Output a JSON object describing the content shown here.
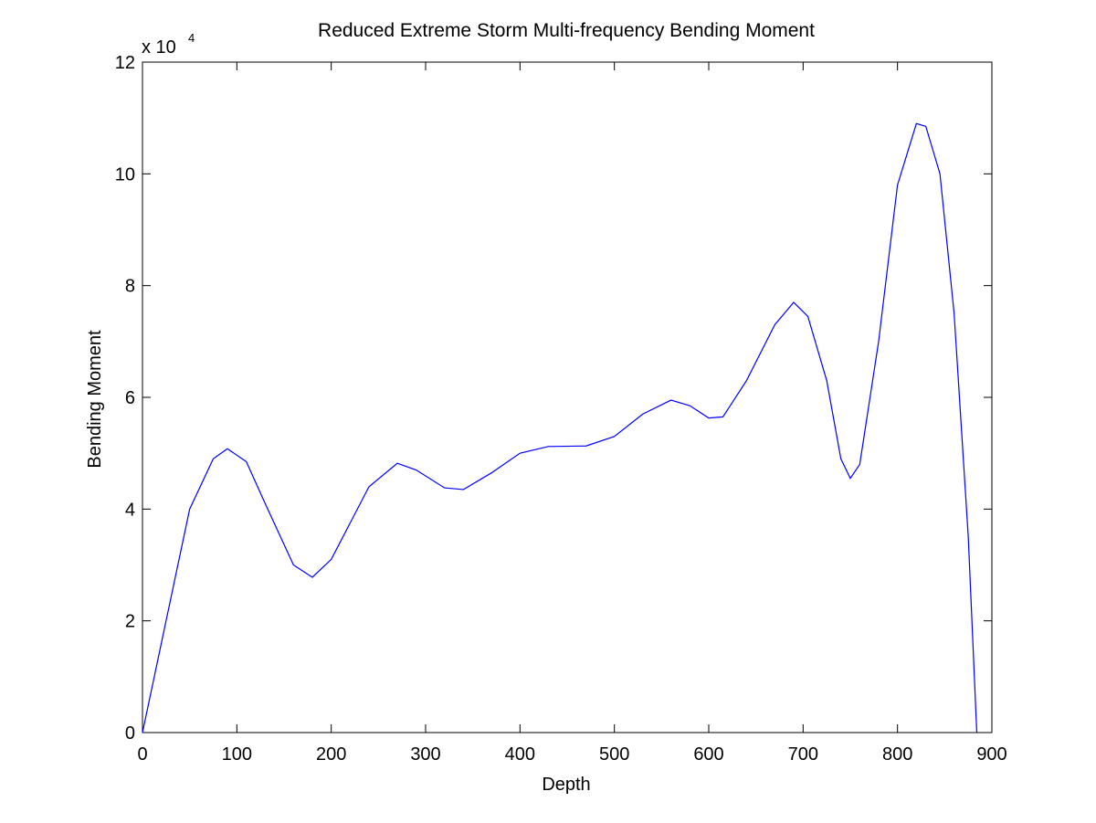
{
  "chart_data": {
    "type": "line",
    "title": "Reduced Extreme Storm Multi-frequency Bending Moment",
    "x_label": "Depth",
    "y_label": "Bending Moment",
    "y_multiplier": {
      "base": "x 10",
      "exponent": "4"
    },
    "xlim": [
      0,
      900
    ],
    "xticks": [
      0,
      100,
      200,
      300,
      400,
      500,
      600,
      700,
      800,
      900
    ],
    "ylim": [
      0,
      12
    ],
    "yticks": [
      0,
      2,
      4,
      6,
      8,
      10,
      12
    ],
    "series": [
      {
        "color": "#0000ff",
        "x": [
          0,
          10,
          25,
          50,
          75,
          90,
          110,
          130,
          160,
          180,
          200,
          240,
          270,
          290,
          320,
          340,
          370,
          400,
          430,
          470,
          500,
          530,
          560,
          580,
          600,
          615,
          640,
          670,
          690,
          705,
          725,
          740,
          750,
          760,
          780,
          800,
          820,
          830,
          845,
          860,
          875,
          884
        ],
        "values": [
          0,
          0.8,
          2.0,
          4.0,
          4.9,
          5.08,
          4.85,
          4.1,
          3.0,
          2.78,
          3.1,
          4.4,
          4.82,
          4.7,
          4.38,
          4.35,
          4.65,
          5.0,
          5.12,
          5.13,
          5.3,
          5.7,
          5.95,
          5.85,
          5.63,
          5.65,
          6.3,
          7.3,
          7.7,
          7.45,
          6.3,
          4.9,
          4.55,
          4.8,
          7.0,
          9.8,
          10.9,
          10.85,
          10.0,
          7.5,
          3.5,
          0
        ]
      }
    ]
  }
}
